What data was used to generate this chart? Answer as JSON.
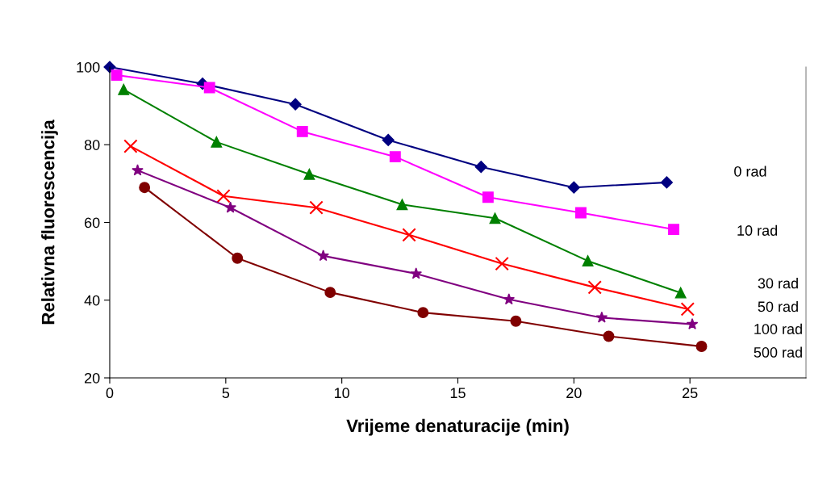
{
  "chart_data": {
    "type": "line",
    "xlabel": "Vrijeme denaturacije (min)",
    "ylabel": "Relativna fluorescencija",
    "xlim": [
      0,
      30
    ],
    "xticks": [
      0,
      5,
      10,
      15,
      20,
      25
    ],
    "ylim": [
      20,
      100
    ],
    "yticks": [
      20,
      40,
      60,
      80,
      100
    ],
    "grid": false,
    "legend": false,
    "line_style": "solid",
    "series": [
      {
        "name": "0 rad",
        "color": "#000080",
        "marker": "diamond",
        "x": [
          0,
          4,
          8,
          12,
          16,
          20,
          24
        ],
        "values": [
          100,
          95.7,
          90.4,
          81.2,
          74.3,
          69,
          70.3
        ]
      },
      {
        "name": "10 rad",
        "color": "#ff00ff",
        "marker": "square",
        "x": [
          0.3,
          4.3,
          8.3,
          12.3,
          16.3,
          20.3,
          24.3
        ],
        "values": [
          97.9,
          94.7,
          83.4,
          76.9,
          66.5,
          62.5,
          58.2
        ]
      },
      {
        "name": "30 rad",
        "color": "#008000",
        "marker": "triangle",
        "x": [
          0.6,
          4.6,
          8.6,
          12.6,
          16.6,
          20.6,
          24.6
        ],
        "values": [
          94.2,
          80.7,
          72.4,
          64.6,
          61.1,
          50.1,
          41.9
        ]
      },
      {
        "name": "50 rad",
        "color": "#ff0000",
        "marker": "cross",
        "x": [
          0.9,
          4.9,
          8.9,
          12.9,
          16.9,
          20.9,
          24.9
        ],
        "values": [
          79.6,
          66.8,
          63.8,
          56.8,
          49.4,
          43.3,
          37.7
        ]
      },
      {
        "name": "100 rad",
        "color": "#800080",
        "marker": "star",
        "x": [
          1.2,
          5.2,
          9.2,
          13.2,
          17.2,
          21.2,
          25.1
        ],
        "values": [
          73.4,
          63.8,
          51.4,
          46.8,
          40.2,
          35.5,
          33.8
        ]
      },
      {
        "name": "500 rad",
        "color": "#800000",
        "marker": "circle",
        "x": [
          1.5,
          5.5,
          9.5,
          13.5,
          17.5,
          21.5,
          25.5
        ],
        "values": [
          69,
          50.8,
          42,
          36.8,
          34.6,
          30.7,
          28.1
        ]
      }
    ]
  }
}
